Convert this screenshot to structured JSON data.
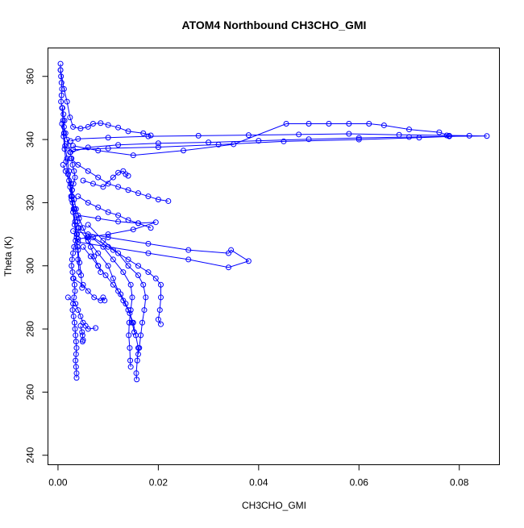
{
  "chart_data": {
    "type": "scatter",
    "title": "ATOM4 Northbound CH3CHO_GMI",
    "xlabel": "CH3CHO_GMI",
    "ylabel": "Theta (K)",
    "xlim": [
      -0.002,
      0.088
    ],
    "ylim": [
      237,
      369
    ],
    "x_ticks": [
      0.0,
      0.02,
      0.04,
      0.06,
      0.08
    ],
    "x_tick_labels": [
      "0.00",
      "0.02",
      "0.04",
      "0.06",
      "0.08"
    ],
    "y_ticks": [
      240,
      260,
      280,
      300,
      320,
      340,
      360
    ],
    "y_tick_labels": [
      "240",
      "260",
      "280",
      "300",
      "320",
      "340",
      "360"
    ],
    "grid": false,
    "legend": "none",
    "series_color": "#0000ff",
    "marker": "open-circle",
    "connected": true,
    "series": [
      {
        "points": [
          [
            0.0005,
            364
          ],
          [
            0.0005,
            362
          ],
          [
            0.0006,
            360
          ],
          [
            0.0007,
            358
          ],
          [
            0.0008,
            356
          ],
          [
            0.0007,
            354
          ],
          [
            0.0006,
            352
          ],
          [
            0.0009,
            350
          ],
          [
            0.0011,
            348
          ],
          [
            0.0013,
            346
          ],
          [
            0.0012,
            344
          ],
          [
            0.0015,
            342
          ],
          [
            0.0018,
            340
          ],
          [
            0.0021,
            338
          ],
          [
            0.0024,
            336
          ],
          [
            0.0027,
            334
          ],
          [
            0.0029,
            332
          ],
          [
            0.0032,
            330
          ],
          [
            0.0034,
            328
          ],
          [
            0.0031,
            326
          ],
          [
            0.0028,
            324
          ],
          [
            0.0026,
            322
          ],
          [
            0.0029,
            320
          ],
          [
            0.0033,
            318
          ],
          [
            0.0036,
            316
          ],
          [
            0.0039,
            314
          ],
          [
            0.0042,
            312
          ],
          [
            0.0038,
            310
          ],
          [
            0.0035,
            308
          ],
          [
            0.0032,
            306
          ],
          [
            0.003,
            304
          ],
          [
            0.0028,
            302
          ],
          [
            0.0027,
            300
          ],
          [
            0.0029,
            298
          ],
          [
            0.0031,
            296
          ],
          [
            0.0033,
            294
          ],
          [
            0.0034,
            292
          ],
          [
            0.0032,
            290
          ],
          [
            0.003,
            288
          ],
          [
            0.0029,
            286
          ],
          [
            0.0031,
            284
          ],
          [
            0.0033,
            282
          ],
          [
            0.0034,
            280
          ],
          [
            0.0035,
            278
          ],
          [
            0.0036,
            276
          ],
          [
            0.0037,
            274
          ],
          [
            0.0036,
            272
          ],
          [
            0.0035,
            270
          ],
          [
            0.0036,
            268
          ],
          [
            0.0037,
            266
          ],
          [
            0.0037,
            264.5
          ]
        ]
      },
      {
        "points": [
          [
            0.0025,
            336
          ],
          [
            0.006,
            337.5
          ],
          [
            0.012,
            338.3
          ],
          [
            0.02,
            338.8
          ],
          [
            0.03,
            339.1
          ],
          [
            0.04,
            339.6
          ],
          [
            0.05,
            340.1
          ],
          [
            0.06,
            340.5
          ],
          [
            0.07,
            340.8
          ],
          [
            0.078,
            341.0
          ],
          [
            0.0855,
            341.1
          ],
          [
            0.0775,
            341.3
          ],
          [
            0.068,
            341.5
          ],
          [
            0.058,
            341.8
          ],
          [
            0.048,
            341.6
          ],
          [
            0.038,
            341.4
          ],
          [
            0.028,
            341.2
          ],
          [
            0.018,
            341.0
          ],
          [
            0.01,
            340.6
          ],
          [
            0.004,
            340.2
          ],
          [
            0.0025,
            339.5
          ]
        ]
      },
      {
        "points": [
          [
            0.003,
            338
          ],
          [
            0.008,
            336.5
          ],
          [
            0.015,
            335
          ],
          [
            0.025,
            336.5
          ],
          [
            0.035,
            338.5
          ],
          [
            0.0455,
            345
          ],
          [
            0.05,
            345
          ],
          [
            0.054,
            345
          ],
          [
            0.058,
            345
          ],
          [
            0.062,
            345
          ],
          [
            0.065,
            344.5
          ],
          [
            0.07,
            343.2
          ],
          [
            0.076,
            342.3
          ],
          [
            0.078,
            341.2
          ],
          [
            0.082,
            341.2
          ],
          [
            0.072,
            340.6
          ],
          [
            0.06,
            340.0
          ],
          [
            0.045,
            339.4
          ],
          [
            0.032,
            338.4
          ],
          [
            0.02,
            337.6
          ],
          [
            0.01,
            337.2
          ],
          [
            0.003,
            336.8
          ]
        ]
      },
      {
        "points": [
          [
            0.0025,
            334
          ],
          [
            0.004,
            332
          ],
          [
            0.006,
            330
          ],
          [
            0.008,
            328
          ],
          [
            0.01,
            326
          ],
          [
            0.012,
            325
          ],
          [
            0.014,
            324
          ],
          [
            0.016,
            323
          ],
          [
            0.018,
            322
          ],
          [
            0.02,
            321
          ],
          [
            0.022,
            320.5
          ]
        ]
      },
      {
        "points": [
          [
            0.005,
            327
          ],
          [
            0.007,
            326
          ],
          [
            0.009,
            325
          ],
          [
            0.011,
            328
          ],
          [
            0.012,
            329.5
          ],
          [
            0.013,
            330
          ],
          [
            0.0135,
            329
          ],
          [
            0.014,
            328.5
          ]
        ]
      },
      {
        "points": [
          [
            0.004,
            316
          ],
          [
            0.008,
            315
          ],
          [
            0.012,
            314
          ],
          [
            0.016,
            313.5
          ],
          [
            0.0195,
            313.8
          ],
          [
            0.015,
            311.5
          ],
          [
            0.01,
            310
          ],
          [
            0.006,
            309
          ],
          [
            0.004,
            308.5
          ]
        ]
      },
      {
        "points": [
          [
            0.003,
            311
          ],
          [
            0.01,
            309
          ],
          [
            0.018,
            307
          ],
          [
            0.026,
            305
          ],
          [
            0.034,
            304
          ],
          [
            0.0345,
            305
          ],
          [
            0.038,
            301.5
          ],
          [
            0.034,
            299.5
          ],
          [
            0.026,
            302
          ],
          [
            0.018,
            304
          ],
          [
            0.01,
            306
          ],
          [
            0.004,
            307.5
          ]
        ]
      },
      {
        "points": [
          [
            0.004,
            312
          ],
          [
            0.006,
            308
          ],
          [
            0.008,
            304
          ],
          [
            0.01,
            300
          ],
          [
            0.011,
            296
          ],
          [
            0.012,
            292
          ],
          [
            0.013,
            289
          ],
          [
            0.014,
            286
          ],
          [
            0.015,
            282
          ],
          [
            0.0155,
            278
          ],
          [
            0.016,
            274
          ],
          [
            0.0158,
            270
          ],
          [
            0.0156,
            266
          ],
          [
            0.0157,
            264
          ]
        ]
      },
      {
        "points": [
          [
            0.006,
            313
          ],
          [
            0.009,
            308
          ],
          [
            0.012,
            304
          ],
          [
            0.014,
            300
          ],
          [
            0.016,
            297
          ],
          [
            0.017,
            294
          ],
          [
            0.0175,
            290
          ],
          [
            0.0172,
            286
          ],
          [
            0.0168,
            282
          ],
          [
            0.0165,
            278
          ],
          [
            0.0162,
            274
          ],
          [
            0.016,
            272
          ]
        ]
      },
      {
        "points": [
          [
            0.006,
            310
          ],
          [
            0.009,
            306
          ],
          [
            0.011,
            302
          ],
          [
            0.013,
            298
          ],
          [
            0.0145,
            294
          ],
          [
            0.0148,
            290
          ],
          [
            0.0145,
            286
          ],
          [
            0.0142,
            282
          ],
          [
            0.0141,
            278
          ],
          [
            0.0143,
            274
          ],
          [
            0.0144,
            270
          ],
          [
            0.0145,
            268
          ]
        ]
      },
      {
        "points": [
          [
            0.007,
            309
          ],
          [
            0.011,
            305
          ],
          [
            0.014,
            302
          ],
          [
            0.016,
            300
          ],
          [
            0.018,
            298
          ],
          [
            0.0195,
            296
          ],
          [
            0.0205,
            294
          ],
          [
            0.0205,
            290
          ],
          [
            0.0203,
            286
          ],
          [
            0.02,
            283
          ],
          [
            0.0205,
            281.5
          ]
        ]
      },
      {
        "points": [
          [
            0.003,
            296
          ],
          [
            0.005,
            294
          ],
          [
            0.006,
            292
          ],
          [
            0.0072,
            290
          ],
          [
            0.0085,
            289
          ],
          [
            0.009,
            290
          ],
          [
            0.0093,
            289
          ]
        ]
      },
      {
        "points": [
          [
            0.002,
            290
          ],
          [
            0.0035,
            288
          ],
          [
            0.004,
            286
          ],
          [
            0.0045,
            284
          ],
          [
            0.005,
            282
          ],
          [
            0.0055,
            281
          ],
          [
            0.006,
            280
          ],
          [
            0.0075,
            280.3
          ]
        ]
      },
      {
        "points": [
          [
            0.0045,
            281
          ],
          [
            0.0048,
            279
          ],
          [
            0.0049,
            278
          ],
          [
            0.005,
            276.5
          ],
          [
            0.0049,
            276
          ]
        ]
      },
      {
        "points": [
          [
            0.0005,
            362
          ],
          [
            0.0012,
            356
          ],
          [
            0.0018,
            352
          ],
          [
            0.0024,
            347
          ],
          [
            0.003,
            344
          ],
          [
            0.0045,
            343.5
          ],
          [
            0.006,
            344
          ],
          [
            0.007,
            345
          ],
          [
            0.0085,
            345.2
          ],
          [
            0.01,
            344.6
          ],
          [
            0.012,
            343.8
          ],
          [
            0.014,
            342.6
          ],
          [
            0.017,
            342.0
          ],
          [
            0.0185,
            341.3
          ]
        ]
      },
      {
        "points": [
          [
            0.001,
            332
          ],
          [
            0.0015,
            330
          ],
          [
            0.0022,
            327
          ],
          [
            0.0028,
            324
          ],
          [
            0.0032,
            321
          ],
          [
            0.0036,
            318
          ],
          [
            0.0042,
            315
          ],
          [
            0.005,
            312
          ],
          [
            0.0058,
            309
          ],
          [
            0.0065,
            306
          ],
          [
            0.0072,
            303
          ],
          [
            0.008,
            300
          ],
          [
            0.0085,
            298
          ]
        ]
      },
      {
        "points": [
          [
            0.0008,
            345
          ],
          [
            0.0011,
            341
          ],
          [
            0.0013,
            337
          ],
          [
            0.0016,
            333
          ],
          [
            0.002,
            329
          ],
          [
            0.0024,
            325
          ],
          [
            0.0027,
            321
          ],
          [
            0.003,
            317
          ],
          [
            0.0033,
            313
          ],
          [
            0.0037,
            309
          ],
          [
            0.004,
            305
          ],
          [
            0.0043,
            301
          ],
          [
            0.0046,
            297
          ],
          [
            0.0048,
            293
          ]
        ]
      },
      {
        "points": [
          [
            0.004,
            322
          ],
          [
            0.006,
            320
          ],
          [
            0.008,
            318.5
          ],
          [
            0.01,
            317
          ],
          [
            0.012,
            316
          ],
          [
            0.014,
            314.5
          ],
          [
            0.016,
            313.5
          ],
          [
            0.0185,
            312
          ]
        ]
      },
      {
        "points": [
          [
            0.005,
            306
          ],
          [
            0.0065,
            303
          ],
          [
            0.008,
            300
          ],
          [
            0.0095,
            297
          ],
          [
            0.011,
            294
          ],
          [
            0.0125,
            291
          ],
          [
            0.0135,
            288
          ],
          [
            0.0143,
            285
          ],
          [
            0.0148,
            282
          ],
          [
            0.0152,
            279
          ]
        ]
      },
      {
        "points": [
          [
            0.0008,
            350
          ],
          [
            0.001,
            346
          ],
          [
            0.0012,
            342
          ],
          [
            0.0014,
            338
          ],
          [
            0.0018,
            334
          ],
          [
            0.0022,
            330
          ],
          [
            0.0025,
            326
          ],
          [
            0.0028,
            322
          ],
          [
            0.0031,
            318
          ],
          [
            0.0034,
            314
          ],
          [
            0.0037,
            310
          ],
          [
            0.0039,
            306
          ],
          [
            0.004,
            302
          ],
          [
            0.0042,
            298
          ]
        ]
      }
    ]
  }
}
